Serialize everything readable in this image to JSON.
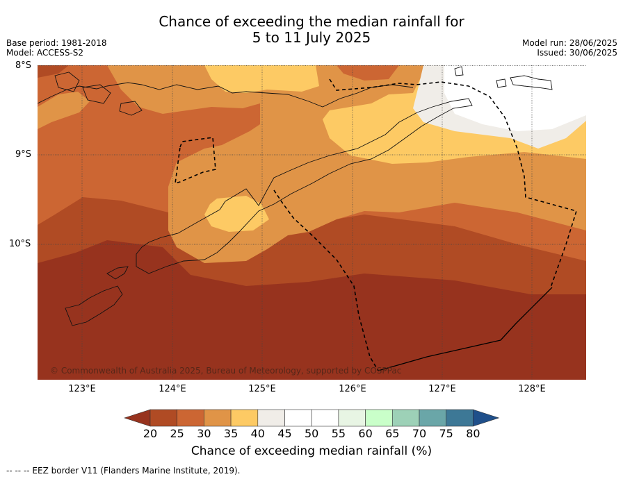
{
  "title_line1": "Chance of exceeding the median rainfall for",
  "title_line2": "5 to 11 July 2025",
  "base_period": "Base period: 1981-2018",
  "model": "Model: ACCESS-S2",
  "model_run": "Model run: 28/06/2025",
  "issued": "Issued: 30/06/2025",
  "copyright": "© Commonwealth of Australia 2025, Bureau of Meteorology, supported by COSPPac",
  "lat_labels": [
    "8°S",
    "9°S",
    "10°S"
  ],
  "lon_labels": [
    "123°E",
    "124°E",
    "125°E",
    "126°E",
    "127°E",
    "128°E"
  ],
  "colorbar": {
    "title": "Chance of exceeding median rainfall (%)",
    "ticks": [
      "20",
      "25",
      "30",
      "35",
      "40",
      "45",
      "50",
      "55",
      "60",
      "65",
      "70",
      "75",
      "80"
    ],
    "colors": [
      "#97331e",
      "#b04b24",
      "#cc6633",
      "#e09447",
      "#fdca64",
      "#f0ede8",
      "#ffffff",
      "#ffffff",
      "#e8f5e4",
      "#c9ffc9",
      "#9dd1b7",
      "#6aa6a8",
      "#3d7896",
      "#1f4f8a"
    ]
  },
  "footnote": "--  --  -- EEZ border V11 (Flanders Marine Institute, 2019)."
}
